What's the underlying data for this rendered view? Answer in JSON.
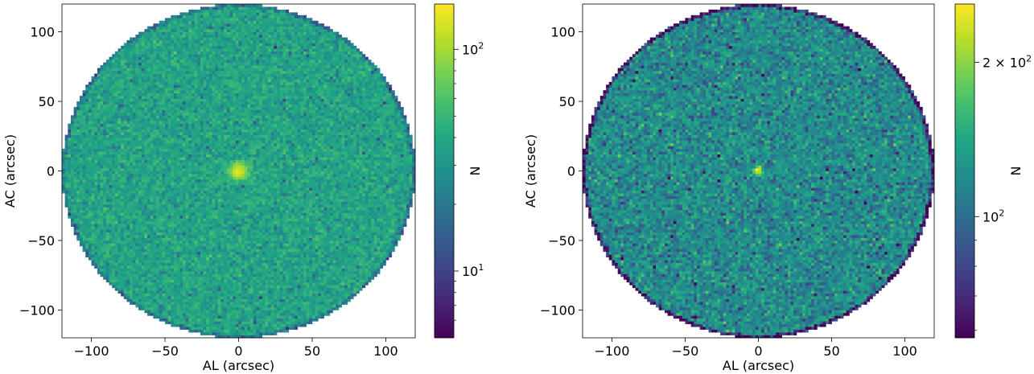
{
  "chart_data": [
    {
      "type": "heatmap",
      "xlabel": "AL (arcsec)",
      "ylabel": "AC (arcsec)",
      "xlim": [
        -120,
        120
      ],
      "ylim": [
        -120,
        120
      ],
      "xticks": [
        -100,
        -50,
        0,
        50,
        100
      ],
      "yticks": [
        -100,
        -50,
        0,
        50,
        100
      ],
      "xtick_labels": [
        "−100",
        "−50",
        "0",
        "50",
        "100"
      ],
      "ytick_labels": [
        "−100",
        "−50",
        "0",
        "50",
        "100"
      ],
      "footprint_radius": 120,
      "bins_per_axis": 120,
      "color_scale": "log",
      "colormap": "viridis",
      "colorbar_label": "N",
      "colorbar_range": [
        5,
        160
      ],
      "colorbar_major_ticks": [
        {
          "value": 10,
          "base": "10",
          "exp": "1",
          "mult": ""
        },
        {
          "value": 100,
          "base": "10",
          "exp": "2",
          "mult": ""
        }
      ],
      "colorbar_minor_ticks": [
        6,
        7,
        8,
        9,
        20,
        30,
        40,
        50,
        60,
        70,
        80,
        90
      ],
      "background_level": 38,
      "noise_fraction": 0.22,
      "central_peak": {
        "x": 0,
        "y": 0,
        "peak_level": 140,
        "width": 4,
        "ring": false
      }
    },
    {
      "type": "heatmap",
      "xlabel": "AL (arcsec)",
      "ylabel": "AC (arcsec)",
      "xlim": [
        -120,
        120
      ],
      "ylim": [
        -120,
        120
      ],
      "xticks": [
        -100,
        -50,
        0,
        50,
        100
      ],
      "yticks": [
        -100,
        -50,
        0,
        50,
        100
      ],
      "xtick_labels": [
        "−100",
        "−50",
        "0",
        "50",
        "100"
      ],
      "ytick_labels": [
        "−100",
        "−50",
        "0",
        "50",
        "100"
      ],
      "footprint_radius": 120,
      "bins_per_axis": 120,
      "color_scale": "log",
      "colormap": "viridis",
      "colorbar_label": "N",
      "colorbar_range": [
        58,
        260
      ],
      "colorbar_major_ticks": [
        {
          "value": 100,
          "base": "10",
          "exp": "2",
          "mult": ""
        },
        {
          "value": 200,
          "base": "10",
          "exp": "2",
          "mult": "2 × "
        }
      ],
      "colorbar_minor_ticks": [
        60,
        70,
        80,
        90
      ],
      "background_level": 120,
      "noise_fraction": 0.16,
      "central_peak": {
        "x": 0,
        "y": 0,
        "peak_level": 230,
        "width": 2.5,
        "ring": true
      }
    }
  ]
}
